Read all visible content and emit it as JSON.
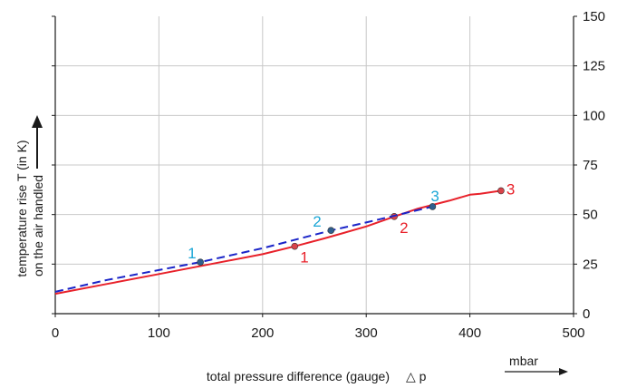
{
  "colors": {
    "series_red": "#e8212a",
    "series_blue": "#1a24c8",
    "label_cyan": "#1aa6d6",
    "point_fill_red": "#d9434a",
    "point_fill_blue": "#2f5f8f",
    "grid": "#c8c8c8",
    "axis": "#1a1a1a"
  },
  "chart_data": {
    "type": "line",
    "xlabel": "total pressure difference (gauge)",
    "xlabel_symbol": "△ p",
    "xunit": "mbar",
    "ylabel_line1": "temperature rise T (in K)",
    "ylabel_line2": "on the air handled",
    "xlim": [
      0,
      500
    ],
    "ylim": [
      0,
      150
    ],
    "x_ticks": [
      "0",
      "100",
      "200",
      "300",
      "400",
      "500"
    ],
    "y_ticks": [
      "0",
      "25",
      "50",
      "75",
      "100",
      "125",
      "150"
    ],
    "grid": true,
    "series": [
      {
        "style": "solid",
        "color": "red",
        "x": [
          0,
          50,
          100,
          150,
          200,
          231,
          260,
          300,
          327,
          350,
          380,
          400,
          410,
          430
        ],
        "y": [
          10,
          15,
          20,
          25,
          30,
          34,
          38,
          44,
          49,
          53,
          57,
          60,
          60.5,
          62
        ],
        "points": [
          {
            "label": "1",
            "x": 231,
            "y": 34
          },
          {
            "label": "2",
            "x": 327,
            "y": 49
          },
          {
            "label": "3",
            "x": 430,
            "y": 62
          }
        ]
      },
      {
        "style": "dashed",
        "color": "blue",
        "x": [
          0,
          50,
          100,
          140,
          200,
          266,
          300,
          364
        ],
        "y": [
          11,
          17,
          22,
          26,
          33,
          42,
          46,
          54
        ],
        "points": [
          {
            "label": "1",
            "x": 140,
            "y": 26
          },
          {
            "label": "2",
            "x": 266,
            "y": 42
          },
          {
            "label": "3",
            "x": 364,
            "y": 54
          }
        ]
      }
    ]
  }
}
